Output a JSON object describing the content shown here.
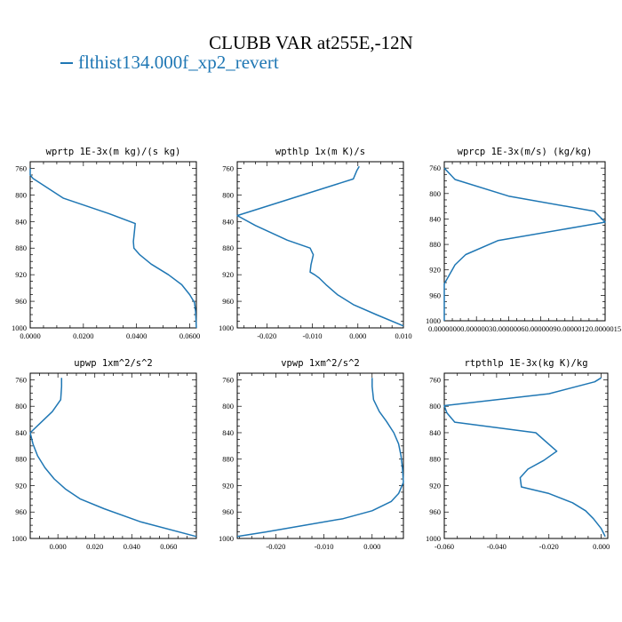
{
  "title": "CLUBB VAR at255E,-12N",
  "legend": {
    "label": "flthist134.000f_xp2_revert",
    "color": "#1f77b4"
  },
  "chart_data": [
    {
      "type": "line",
      "title": "wprtp  1E-3x(m kg)/(s kg)",
      "xlim": [
        0.0,
        0.0625
      ],
      "ylim": [
        1000,
        750
      ],
      "xticks": [
        "0.0000",
        "0.0200",
        "0.0400",
        "0.0600"
      ],
      "xtick_values": [
        0.0,
        0.02,
        0.04,
        0.06
      ],
      "yticks": [
        "760",
        "800",
        "840",
        "880",
        "920",
        "960",
        "1000"
      ],
      "series": [
        {
          "color": "#1f77b4",
          "x": [
            0.0,
            0.0,
            0.001,
            0.0125,
            0.0295,
            0.0395,
            0.0392,
            0.0388,
            0.039,
            0.0412,
            0.0455,
            0.052,
            0.057,
            0.06,
            0.0618,
            0.0622,
            0.0625
          ],
          "y": [
            760,
            770,
            775,
            805,
            828,
            843,
            855,
            870,
            880,
            890,
            904,
            920,
            935,
            950,
            962,
            975,
            1000
          ]
        }
      ]
    },
    {
      "type": "line",
      "title": "wpthlp  1x(m K)/s",
      "xlim": [
        -0.0265,
        0.01
      ],
      "ylim": [
        1000,
        750
      ],
      "xticks": [
        "-0.020",
        "-0.010",
        "0.000",
        "0.010"
      ],
      "xtick_values": [
        -0.02,
        -0.01,
        0.0,
        0.01
      ],
      "yticks": [
        "760",
        "800",
        "840",
        "880",
        "920",
        "960",
        "1000"
      ],
      "series": [
        {
          "color": "#1f77b4",
          "x": [
            0.0003,
            -0.0002,
            -0.001,
            -0.0265,
            -0.0225,
            -0.0155,
            -0.0105,
            -0.0098,
            -0.0103,
            -0.0105,
            -0.0095,
            -0.0085,
            -0.007,
            -0.0045,
            -0.001,
            0.004,
            0.01
          ],
          "y": [
            757,
            763,
            776,
            831,
            846,
            868,
            880,
            890,
            905,
            916,
            920,
            925,
            935,
            950,
            965,
            980,
            997
          ]
        }
      ]
    },
    {
      "type": "line",
      "title": "wprcp  1E-3x(m/s) (kg/kg)",
      "xlim": [
        0.0,
        1.5e-06
      ],
      "ylim": [
        1000,
        750
      ],
      "xticks": [
        "0.0000000",
        "0.0000003",
        "0.0000006",
        "0.0000009",
        "0.0000012",
        "0.0000015"
      ],
      "xtick_values": [
        0.0,
        3e-07,
        6e-07,
        9e-07,
        1.2e-06,
        1.5e-06
      ],
      "yticks": [
        "760",
        "800",
        "840",
        "880",
        "920",
        "960",
        "1000"
      ],
      "series": [
        {
          "color": "#1f77b4",
          "x": [
            0.0,
            1e-07,
            6e-07,
            1.4e-06,
            1.5e-06,
            5e-07,
            2e-07,
            1e-07,
            0.0,
            0.0
          ],
          "y": [
            760,
            778,
            804,
            828,
            845,
            874,
            896,
            912,
            942,
            1000
          ]
        }
      ]
    },
    {
      "type": "line",
      "title": "upwp  1xm^2/s^2",
      "xlim": [
        -0.015,
        0.075
      ],
      "ylim": [
        1000,
        750
      ],
      "xticks": [
        "0.000",
        "0.020",
        "0.040",
        "0.060"
      ],
      "xtick_values": [
        0.0,
        0.02,
        0.04,
        0.06
      ],
      "yticks": [
        "760",
        "800",
        "840",
        "880",
        "920",
        "960",
        "1000"
      ],
      "series": [
        {
          "color": "#1f77b4",
          "x": [
            0.002,
            0.002,
            0.0015,
            -0.003,
            -0.009,
            -0.015,
            -0.0135,
            -0.011,
            -0.007,
            -0.002,
            0.004,
            0.012,
            0.025,
            0.045,
            0.075
          ],
          "y": [
            757,
            770,
            790,
            808,
            824,
            840,
            857,
            875,
            893,
            910,
            925,
            940,
            955,
            975,
            997
          ]
        }
      ]
    },
    {
      "type": "line",
      "title": "vpwp  1xm^2/s^2",
      "xlim": [
        -0.028,
        0.0065
      ],
      "ylim": [
        1000,
        750
      ],
      "xticks": [
        "-0.020",
        "-0.010",
        "0.000"
      ],
      "xtick_values": [
        -0.02,
        -0.01,
        0.0
      ],
      "yticks": [
        "760",
        "800",
        "840",
        "880",
        "920",
        "960",
        "1000"
      ],
      "series": [
        {
          "color": "#1f77b4",
          "x": [
            0.0,
            0.0,
            0.0003,
            0.0015,
            0.003,
            0.0045,
            0.0055,
            0.006,
            0.0063,
            0.0065,
            0.0055,
            0.004,
            0.0,
            -0.006,
            -0.014,
            -0.022,
            -0.028
          ],
          "y": [
            757,
            770,
            790,
            808,
            823,
            840,
            857,
            875,
            893,
            915,
            932,
            944,
            958,
            970,
            980,
            990,
            997
          ]
        }
      ]
    },
    {
      "type": "line",
      "title": "rtpthlp  1E-3x(kg K)/kg",
      "xlim": [
        -0.06,
        0.0025
      ],
      "ylim": [
        1000,
        750
      ],
      "xticks": [
        "-0.060",
        "-0.040",
        "-0.020",
        "0.000"
      ],
      "xtick_values": [
        -0.06,
        -0.04,
        -0.02,
        0.0
      ],
      "yticks": [
        "760",
        "800",
        "840",
        "880",
        "920",
        "960",
        "1000"
      ],
      "series": [
        {
          "color": "#1f77b4",
          "x": [
            0.0,
            -0.0025,
            -0.02,
            -0.06,
            -0.059,
            -0.056,
            -0.025,
            -0.017,
            -0.022,
            -0.028,
            -0.031,
            -0.0305,
            -0.02,
            -0.011,
            -0.006,
            -0.003,
            0.0,
            0.0015
          ],
          "y": [
            757,
            763,
            781,
            799,
            810,
            824,
            840,
            868,
            882,
            895,
            908,
            922,
            932,
            946,
            958,
            970,
            985,
            997
          ]
        }
      ]
    }
  ]
}
